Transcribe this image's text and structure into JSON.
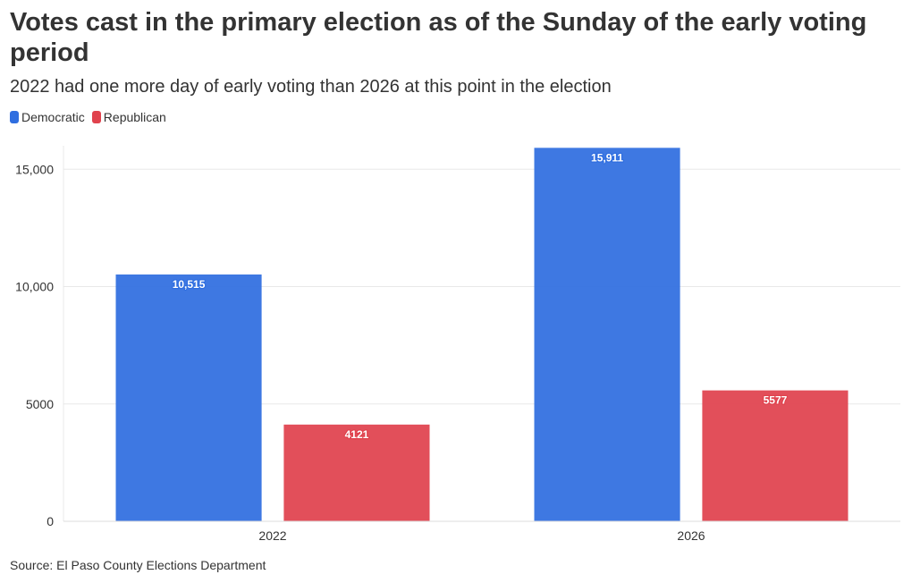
{
  "chart_data": {
    "type": "bar",
    "title": "Votes cast in the primary election as of the Sunday of the early voting period",
    "subtitle": "2022 had one more day of early voting than 2026 at this point in the election",
    "categories": [
      "2022",
      "2026"
    ],
    "series": [
      {
        "name": "Democratic",
        "color": "#2f6ee0",
        "values": [
          10515,
          15911
        ],
        "labels": [
          "10,515",
          "15,911"
        ]
      },
      {
        "name": "Republican",
        "color": "#e0424d",
        "values": [
          4121,
          5577
        ],
        "labels": [
          "4121",
          "5577"
        ]
      }
    ],
    "yticks": [
      0,
      5000,
      10000,
      15000
    ],
    "ytick_labels": [
      "0",
      "5000",
      "10,000",
      "15,000"
    ],
    "ylim": [
      0,
      16000
    ],
    "xlabel": "",
    "ylabel": "",
    "grid": true,
    "legend_position": "top-left",
    "source": "Source: El Paso County Elections Department"
  }
}
